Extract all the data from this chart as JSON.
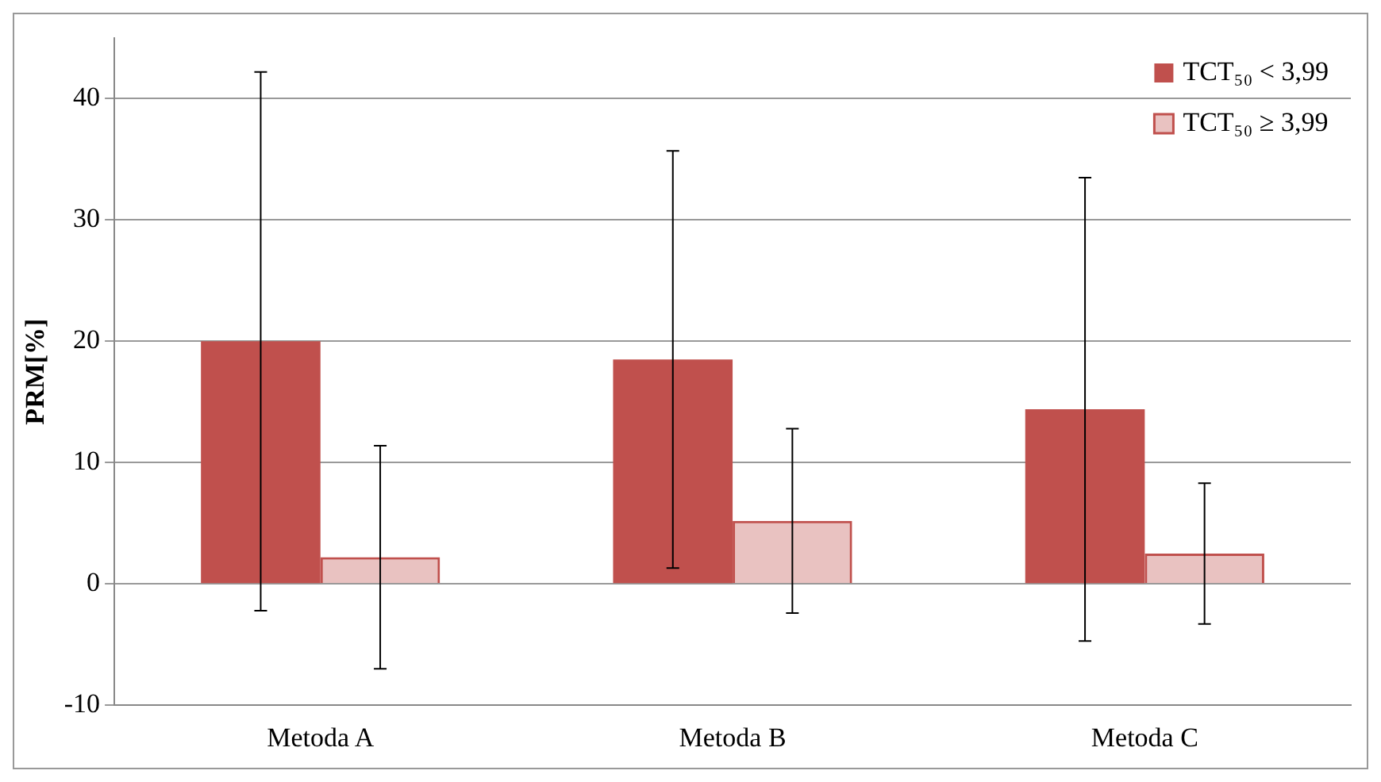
{
  "chart_data": {
    "type": "bar",
    "ylabel": "PRM[%]",
    "categories": [
      "Metoda A",
      "Metoda B",
      "Metoda C"
    ],
    "series": [
      {
        "name": "TCT₅₀ < 3,99",
        "color": "#c0504d",
        "values": [
          20,
          18.5,
          14.4
        ],
        "errors": [
          22.2,
          17.2,
          19.1
        ]
      },
      {
        "name": "TCT₅₀ ≥ 3,99",
        "color": "#c0504d",
        "values": [
          2.2,
          5.2,
          2.5
        ],
        "errors": [
          9.2,
          7.6,
          5.8
        ]
      }
    ],
    "ylim": [
      -10,
      45
    ],
    "yticks": [
      -10,
      0,
      10,
      20,
      30,
      40
    ],
    "grid": "y",
    "legend": "top right"
  }
}
